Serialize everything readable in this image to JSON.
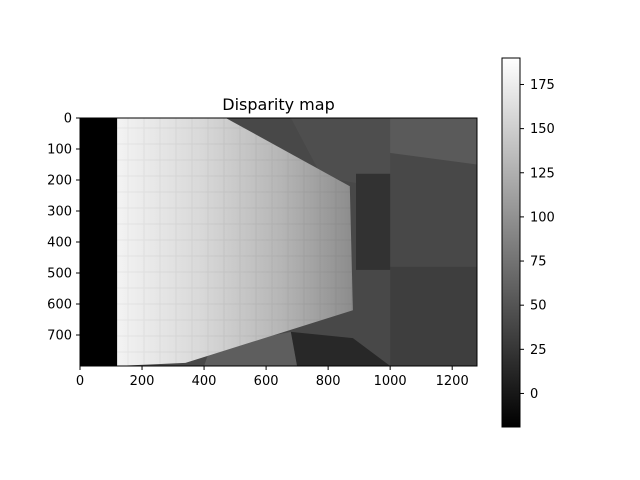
{
  "chart_data": {
    "type": "heatmap",
    "title": "Disparity map",
    "xlabel": "",
    "ylabel": "",
    "colormap": "gray",
    "image_width": 1280,
    "image_height": 800,
    "x_ticks": [
      0,
      200,
      400,
      600,
      800,
      1000,
      1200
    ],
    "y_ticks": [
      0,
      100,
      200,
      300,
      400,
      500,
      600,
      700
    ],
    "x_tick_labels": [
      "0",
      "200",
      "400",
      "600",
      "800",
      "1000",
      "1200"
    ],
    "y_tick_labels": [
      "0",
      "100",
      "200",
      "300",
      "400",
      "500",
      "600",
      "700"
    ],
    "colorbar": {
      "vmin": -19,
      "vmax": 190,
      "ticks": [
        0,
        25,
        50,
        75,
        100,
        125,
        150,
        175
      ],
      "tick_labels": [
        "0",
        "25",
        "50",
        "75",
        "100",
        "125",
        "150",
        "175"
      ]
    },
    "regions": [
      {
        "name": "invalid-left-band",
        "value": -19,
        "polygon": [
          [
            0,
            0
          ],
          [
            120,
            0
          ],
          [
            120,
            800
          ],
          [
            0,
            800
          ]
        ]
      },
      {
        "name": "background-wall",
        "value": 40,
        "polygon": [
          [
            120,
            0
          ],
          [
            1280,
            0
          ],
          [
            1280,
            800
          ],
          [
            120,
            800
          ]
        ]
      },
      {
        "name": "background-floor-right",
        "value": 32,
        "polygon": [
          [
            1000,
            480
          ],
          [
            1280,
            480
          ],
          [
            1280,
            800
          ],
          [
            1000,
            800
          ]
        ]
      },
      {
        "name": "box-upper",
        "value": 55,
        "polygon": [
          [
            980,
            0
          ],
          [
            1280,
            0
          ],
          [
            1280,
            150
          ],
          [
            980,
            110
          ]
        ]
      },
      {
        "name": "shelf-structure",
        "value": 45,
        "polygon": [
          [
            680,
            0
          ],
          [
            1000,
            0
          ],
          [
            1000,
            230
          ],
          [
            780,
            190
          ]
        ]
      },
      {
        "name": "dark-column",
        "value": 22,
        "polygon": [
          [
            890,
            180
          ],
          [
            1000,
            180
          ],
          [
            1000,
            490
          ],
          [
            890,
            490
          ]
        ]
      },
      {
        "name": "bottom-object",
        "value": 58,
        "polygon": [
          [
            420,
            740
          ],
          [
            680,
            690
          ],
          [
            700,
            800
          ],
          [
            400,
            800
          ]
        ]
      },
      {
        "name": "bottom-dark-slab",
        "value": 14,
        "polygon": [
          [
            680,
            690
          ],
          [
            880,
            710
          ],
          [
            1000,
            800
          ],
          [
            700,
            800
          ]
        ]
      },
      {
        "name": "near-plane",
        "value": 160,
        "polygon": [
          [
            120,
            0
          ],
          [
            470,
            0
          ],
          [
            870,
            220
          ],
          [
            880,
            620
          ],
          [
            340,
            790
          ],
          [
            120,
            800
          ]
        ]
      }
    ]
  }
}
